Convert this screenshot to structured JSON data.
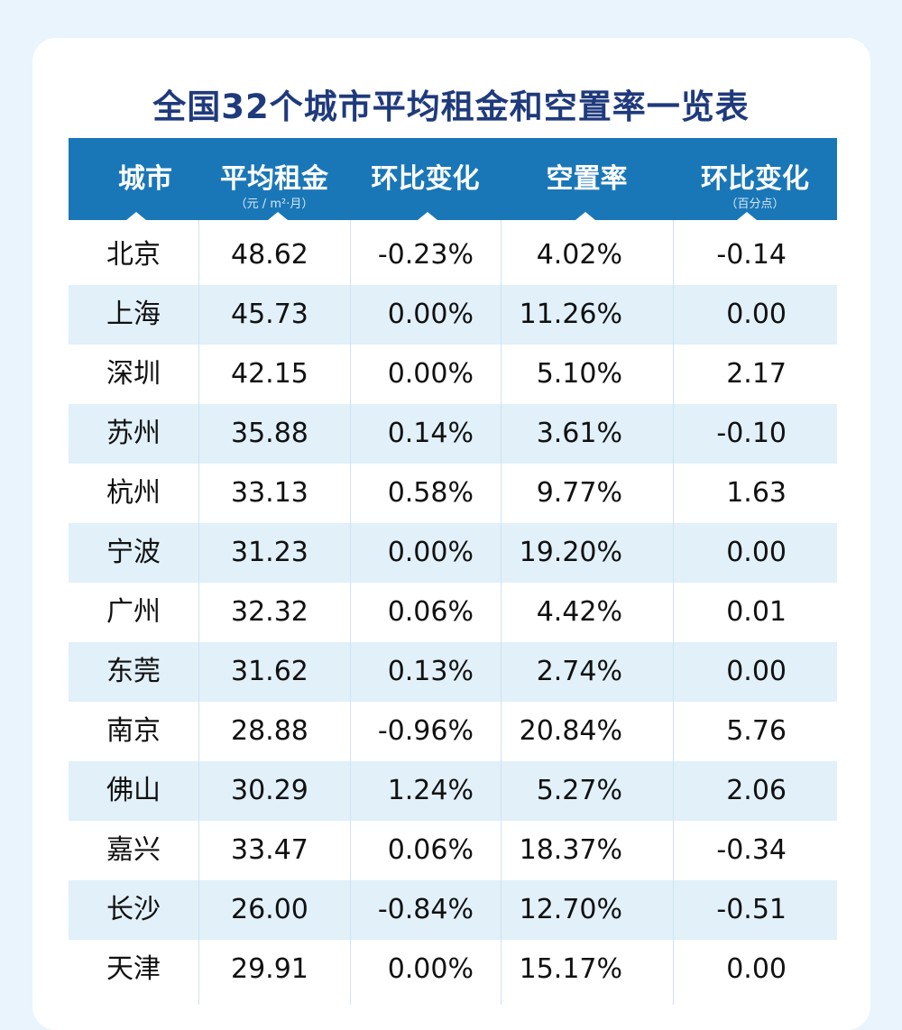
{
  "title": "全国32个城市平均租金和空置率一览表",
  "header": [
    {
      "label": "城市",
      "sub": ""
    },
    {
      "label": "平均租金",
      "sub": "（元 / m²·月）"
    },
    {
      "label": "环比变化",
      "sub": ""
    },
    {
      "label": "空置率",
      "sub": ""
    },
    {
      "label": "环比变化",
      "sub": "（百分点）"
    }
  ],
  "rows": [
    [
      "北京",
      "48.62",
      "-0.23%",
      "4.02%",
      "-0.14"
    ],
    [
      "上海",
      "45.73",
      "0.00%",
      "11.26%",
      "0.00"
    ],
    [
      "深圳",
      "42.15",
      "0.00%",
      "5.10%",
      "2.17"
    ],
    [
      "苏州",
      "35.88",
      "0.14%",
      "3.61%",
      "-0.10"
    ],
    [
      "杭州",
      "33.13",
      "0.58%",
      "9.77%",
      "1.63"
    ],
    [
      "宁波",
      "31.23",
      "0.00%",
      "19.20%",
      "0.00"
    ],
    [
      "广州",
      "32.32",
      "0.06%",
      "4.42%",
      "0.01"
    ],
    [
      "东莞",
      "31.62",
      "0.13%",
      "2.74%",
      "0.00"
    ],
    [
      "南京",
      "28.88",
      "-0.96%",
      "20.84%",
      "5.76"
    ],
    [
      "佛山",
      "30.29",
      "1.24%",
      "5.27%",
      "2.06"
    ],
    [
      "嘉兴",
      "33.47",
      "0.06%",
      "18.37%",
      "-0.34"
    ],
    [
      "长沙",
      "26.00",
      "-0.84%",
      "12.70%",
      "-0.51"
    ],
    [
      "天津",
      "29.91",
      "0.00%",
      "15.17%",
      "0.00"
    ]
  ],
  "colors": {
    "header": "#1a77b7",
    "title": "#1f3a7c",
    "alt_row": "#e1f0f9",
    "background": "#eaf4fc"
  }
}
